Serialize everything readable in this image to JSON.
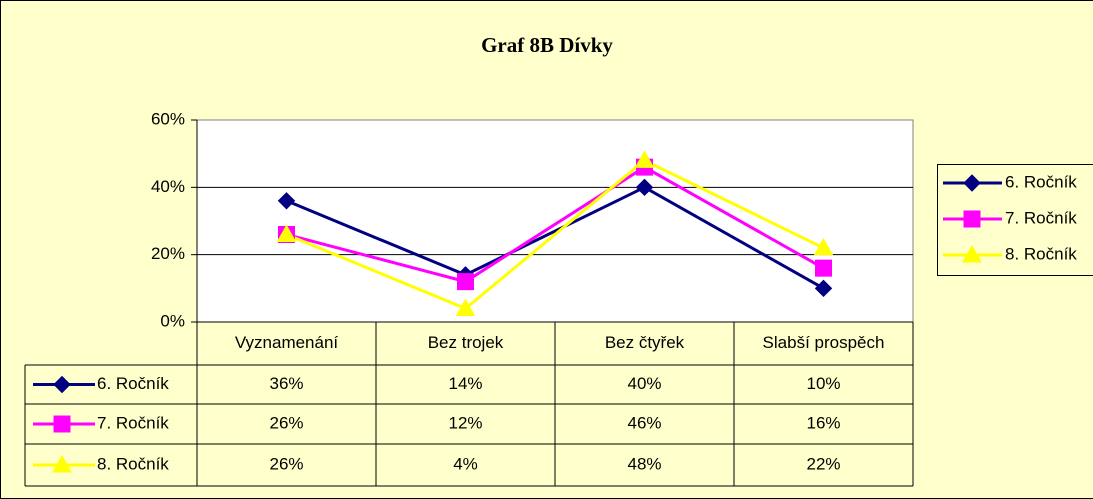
{
  "chart_data": {
    "type": "line",
    "title": "Graf 8B Dívky",
    "categories": [
      "Vyznamenání",
      "Bez trojek",
      "Bez čtyřek",
      "Slabší prospěch"
    ],
    "series": [
      {
        "name": "6. Ročník",
        "color": "#000080",
        "marker": "diamond",
        "values": [
          36,
          14,
          40,
          10
        ],
        "value_labels": [
          "36%",
          "14%",
          "40%",
          "10%"
        ]
      },
      {
        "name": "7. Ročník",
        "color": "#ff00ff",
        "marker": "square",
        "values": [
          26,
          12,
          46,
          16
        ],
        "value_labels": [
          "26%",
          "12%",
          "46%",
          "16%"
        ]
      },
      {
        "name": "8. Ročník",
        "color": "#ffff00",
        "marker": "triangle",
        "values": [
          26,
          4,
          48,
          22
        ],
        "value_labels": [
          "26%",
          "4%",
          "48%",
          "22%"
        ]
      }
    ],
    "ylim": [
      0,
      60
    ],
    "yticks": [
      {
        "value": 0,
        "label": "0%"
      },
      {
        "value": 20,
        "label": "20%"
      },
      {
        "value": 40,
        "label": "40%"
      },
      {
        "value": 60,
        "label": "60%"
      }
    ],
    "grid": true,
    "legend": "right"
  }
}
